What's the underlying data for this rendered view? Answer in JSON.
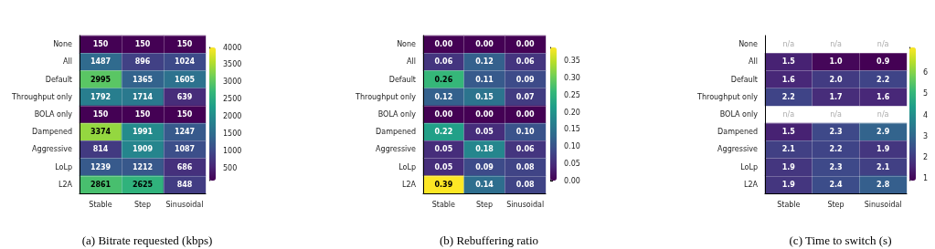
{
  "chart_data": [
    {
      "type": "heatmap",
      "title": "(a) Bitrate requested (kbps)",
      "categories": [
        "Stable",
        "Step",
        "Sinusoidal"
      ],
      "y_categories": [
        "None",
        "All",
        "Default",
        "Throughput only",
        "BOLA only",
        "Dampened",
        "Aggressive",
        "LoLp",
        "L2A"
      ],
      "cells": [
        [
          150,
          150,
          150
        ],
        [
          1487,
          896,
          1024
        ],
        [
          2995,
          1365,
          1605
        ],
        [
          1792,
          1714,
          639
        ],
        [
          150,
          150,
          150
        ],
        [
          3374,
          1991,
          1247
        ],
        [
          814,
          1909,
          1087
        ],
        [
          1239,
          1212,
          686
        ],
        [
          2861,
          2625,
          848
        ]
      ],
      "data_labels": true,
      "clim": [
        150,
        4000
      ],
      "cticks": [
        500,
        1000,
        1500,
        2000,
        2500,
        3000,
        3500,
        4000
      ],
      "grid": true
    },
    {
      "type": "heatmap",
      "title": "(b) Rebuffering ratio",
      "categories": [
        "Stable",
        "Step",
        "Sinusoidal"
      ],
      "y_categories": [
        "None",
        "All",
        "Default",
        "Throughput only",
        "BOLA only",
        "Dampened",
        "Aggressive",
        "LoLp",
        "L2A"
      ],
      "cells": [
        [
          0,
          0,
          0
        ],
        [
          0.06,
          0.12,
          0.06
        ],
        [
          0.26,
          0.11,
          0.09
        ],
        [
          0.12,
          0.15,
          0.07
        ],
        [
          0,
          0,
          0
        ],
        [
          0.22,
          0.05,
          0.1
        ],
        [
          0.05,
          0.18,
          0.06
        ],
        [
          0.05,
          0.09,
          0.08
        ],
        [
          0.39,
          0.14,
          0.08
        ]
      ],
      "cell_labels": [
        [
          "0.00",
          "0.00",
          "0.00"
        ],
        [
          "0.06",
          "0.12",
          "0.06"
        ],
        [
          "0.26",
          "0.11",
          "0.09"
        ],
        [
          "0.12",
          "0.15",
          "0.07"
        ],
        [
          "0.00",
          "0.00",
          "0.00"
        ],
        [
          "0.22",
          "0.05",
          "0.10"
        ],
        [
          "0.05",
          "0.18",
          "0.06"
        ],
        [
          "0.05",
          "0.09",
          "0.08"
        ],
        [
          "0.39",
          "0.14",
          "0.08"
        ]
      ],
      "clim": [
        0,
        0.39
      ],
      "cticks": [
        {
          "value": 0,
          "label": "0.00"
        },
        {
          "value": 0.05,
          "label": "0.05"
        },
        {
          "value": 0.1,
          "label": "0.10"
        },
        {
          "value": 0.15,
          "label": "0.15"
        },
        {
          "value": 0.2,
          "label": "0.20"
        },
        {
          "value": 0.25,
          "label": "0.25"
        },
        {
          "value": 0.3,
          "label": "0.30"
        },
        {
          "value": 0.35,
          "label": "0.35"
        }
      ],
      "grid": true
    },
    {
      "type": "heatmap",
      "title": "(c) Time to switch (s)",
      "categories": [
        "Stable",
        "Step",
        "Sinusoidal"
      ],
      "y_categories": [
        "None",
        "All",
        "Default",
        "Throughput only",
        "BOLA only",
        "Dampened",
        "Aggressive",
        "LoLp",
        "L2A"
      ],
      "cells": [
        [
          null,
          null,
          null
        ],
        [
          1.5,
          1,
          0.9
        ],
        [
          1.6,
          2,
          2.2
        ],
        [
          2.2,
          1.7,
          1.6
        ],
        [
          null,
          null,
          null
        ],
        [
          1.5,
          2.3,
          2.9
        ],
        [
          2.1,
          2.2,
          1.9
        ],
        [
          1.9,
          2.3,
          2.1
        ],
        [
          1.9,
          2.4,
          2.8
        ]
      ],
      "cell_labels": [
        [
          "n/a",
          "n/a",
          "n/a"
        ],
        [
          "1.5",
          "1.0",
          "0.9"
        ],
        [
          "1.6",
          "2.0",
          "2.2"
        ],
        [
          "2.2",
          "1.7",
          "1.6"
        ],
        [
          "n/a",
          "n/a",
          "n/a"
        ],
        [
          "1.5",
          "2.3",
          "2.9"
        ],
        [
          "2.1",
          "2.2",
          "1.9"
        ],
        [
          "1.9",
          "2.3",
          "2.1"
        ],
        [
          "1.9",
          "2.4",
          "2.8"
        ]
      ],
      "clim": [
        0.9,
        7.2
      ],
      "cticks": [
        1,
        2,
        3,
        4,
        5,
        6
      ],
      "grid": true
    }
  ]
}
